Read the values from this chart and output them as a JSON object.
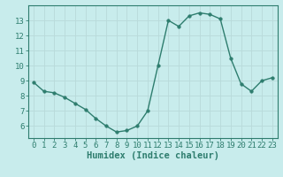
{
  "x": [
    0,
    1,
    2,
    3,
    4,
    5,
    6,
    7,
    8,
    9,
    10,
    11,
    12,
    13,
    14,
    15,
    16,
    17,
    18,
    19,
    20,
    21,
    22,
    23
  ],
  "y": [
    8.9,
    8.3,
    8.2,
    7.9,
    7.5,
    7.1,
    6.5,
    6.0,
    5.6,
    5.7,
    6.0,
    7.0,
    10.0,
    13.0,
    12.6,
    13.3,
    13.5,
    13.4,
    13.1,
    10.5,
    8.8,
    8.3,
    9.0,
    9.2
  ],
  "xlabel": "Humidex (Indice chaleur)",
  "xlim": [
    -0.5,
    23.5
  ],
  "ylim": [
    5.2,
    14.0
  ],
  "yticks": [
    6,
    7,
    8,
    9,
    10,
    11,
    12,
    13
  ],
  "xticks": [
    0,
    1,
    2,
    3,
    4,
    5,
    6,
    7,
    8,
    9,
    10,
    11,
    12,
    13,
    14,
    15,
    16,
    17,
    18,
    19,
    20,
    21,
    22,
    23
  ],
  "line_color": "#2e7d6e",
  "marker_color": "#2e7d6e",
  "bg_color": "#c8ecec",
  "grid_color": "#b8dada",
  "axis_color": "#2e7d6e",
  "label_color": "#2e7d6e",
  "tick_font_size": 6.5,
  "xlabel_font_size": 7.5
}
